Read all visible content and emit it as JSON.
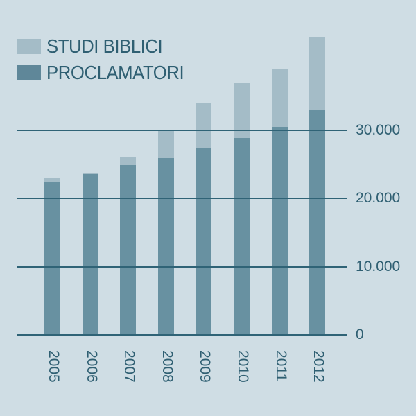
{
  "chart_data": {
    "type": "bar",
    "stacked": true,
    "title": "",
    "xlabel": "",
    "ylabel": "",
    "categories": [
      "2005",
      "2006",
      "2007",
      "2008",
      "2009",
      "2010",
      "2011",
      "2012"
    ],
    "series": [
      {
        "name": "PROCLAMATORI",
        "color": "#6891a1",
        "values": [
          22400,
          23550,
          24900,
          25900,
          27300,
          28800,
          30500,
          33000
        ]
      },
      {
        "name": "STUDI BIBLICI",
        "color": "#a4bcc7",
        "values": [
          500,
          200,
          1200,
          4050,
          6700,
          8200,
          8400,
          10600
        ]
      }
    ],
    "totals": [
      22900,
      23750,
      26100,
      29950,
      34000,
      37000,
      38900,
      43600
    ],
    "yticks": [
      0,
      10000,
      20000,
      30000
    ],
    "ytick_labels": [
      "0",
      "10.000",
      "20.000",
      "30.000"
    ],
    "ylim": [
      0,
      44000
    ],
    "grid": true,
    "legend_position": "top-left",
    "y_axis_side": "right"
  },
  "legend": [
    {
      "label": "STUDI BIBLICI",
      "color": "#a4bcc7"
    },
    {
      "label": "PROCLAMATORI",
      "color": "#5f8799"
    }
  ],
  "colors": {
    "background": "#cfdde4",
    "text": "#2f5f72",
    "grid": "#2f6376"
  }
}
